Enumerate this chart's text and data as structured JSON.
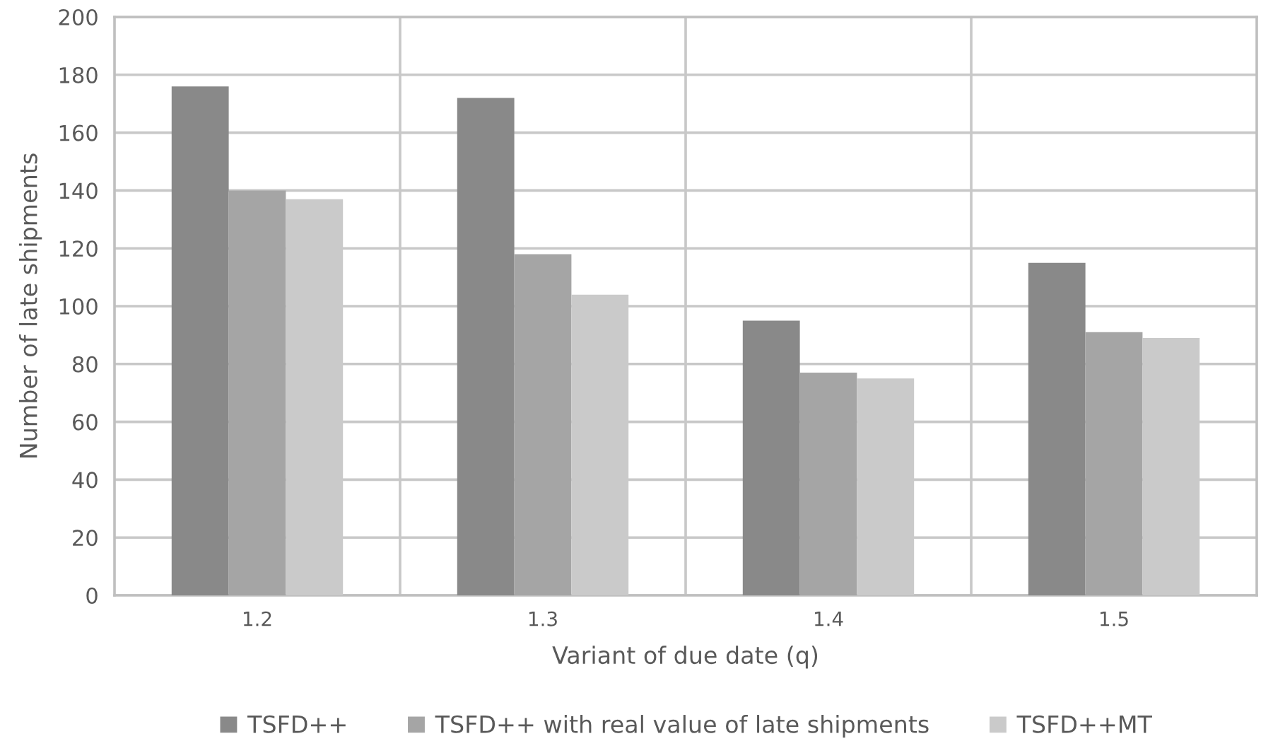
{
  "chart_data": {
    "type": "bar",
    "xlabel": "Variant of due date (q)",
    "ylabel": "Number of late shipments",
    "categories": [
      "1.2",
      "1.3",
      "1.4",
      "1.5"
    ],
    "series": [
      {
        "name": "TSFD++",
        "color": "#898989",
        "values": [
          176,
          172,
          95,
          115
        ]
      },
      {
        "name": "TSFD++ with real value of late shipments",
        "color": "#a5a5a5",
        "values": [
          140,
          118,
          77,
          91
        ]
      },
      {
        "name": "TSFD++MT",
        "color": "#cacaca",
        "values": [
          137,
          104,
          75,
          89
        ]
      }
    ],
    "ylim": [
      0,
      200
    ],
    "yticks": [
      0,
      20,
      40,
      60,
      80,
      100,
      120,
      140,
      160,
      180,
      200
    ],
    "grid": true,
    "legend": "bottom"
  }
}
